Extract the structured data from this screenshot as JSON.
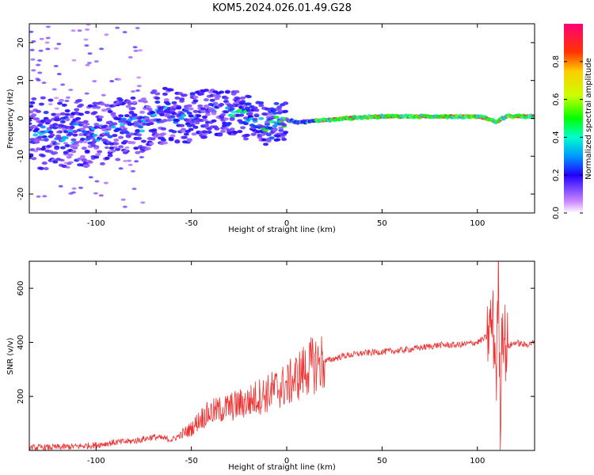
{
  "title": "KOM5.2024.026.01.49.G28",
  "chart_data": [
    {
      "type": "heatmap",
      "xlabel": "Height of straight line (km)",
      "ylabel": "Frequency (Hz)",
      "xlim": [
        -135,
        130
      ],
      "ylim": [
        -25,
        25
      ],
      "xticks": [
        -100,
        -50,
        0,
        50,
        100
      ],
      "yticks": [
        -20,
        -10,
        0,
        10,
        20
      ],
      "colorbar": {
        "label": "Normalized spectral amplitude",
        "ticks": [
          "0.0",
          "0.2",
          "0.4",
          "0.6",
          "0.8"
        ],
        "range": [
          0,
          1
        ],
        "colormap": "gist_rainbow_r"
      },
      "ridge": {
        "x": [
          -100,
          -90,
          -80,
          -70,
          -60,
          -50,
          -40,
          -30,
          -25,
          -20,
          -15,
          -10,
          -5,
          0,
          5,
          10,
          15,
          20,
          30,
          50,
          80,
          100,
          105,
          110,
          115,
          130
        ],
        "y": [
          -4,
          -3,
          -2,
          0,
          1,
          0,
          2,
          1,
          1,
          0,
          -1,
          -2,
          -1,
          -0.5,
          -1,
          -1,
          -0.5,
          -0.5,
          0,
          0.5,
          0.5,
          0.5,
          0,
          -1,
          0.5,
          0.5
        ]
      }
    },
    {
      "type": "line",
      "xlabel": "Height of straight line (km)",
      "ylabel": "SNR (v/v)",
      "xlim": [
        -135,
        130
      ],
      "ylim": [
        0,
        700
      ],
      "xticks": [
        -100,
        -50,
        0,
        50,
        100
      ],
      "yticks": [
        200,
        400,
        600
      ],
      "color": "#ee3333",
      "series": [
        {
          "x": [
            -135,
            -120,
            -110,
            -100,
            -90,
            -80,
            -70,
            -60,
            -55,
            -50,
            -45,
            -40,
            -35,
            -30,
            -25,
            -20,
            -15,
            -10,
            -5,
            0,
            5,
            10,
            15,
            20,
            30,
            40,
            50,
            60,
            70,
            80,
            90,
            100,
            105,
            108,
            110,
            111,
            112,
            113,
            115,
            120,
            125,
            130
          ],
          "y": [
            10,
            12,
            15,
            20,
            30,
            35,
            50,
            40,
            60,
            80,
            120,
            140,
            150,
            160,
            170,
            180,
            200,
            210,
            230,
            240,
            270,
            300,
            320,
            330,
            350,
            360,
            365,
            370,
            380,
            390,
            390,
            400,
            420,
            480,
            300,
            650,
            100,
            500,
            380,
            400,
            390,
            400
          ]
        }
      ]
    }
  ]
}
